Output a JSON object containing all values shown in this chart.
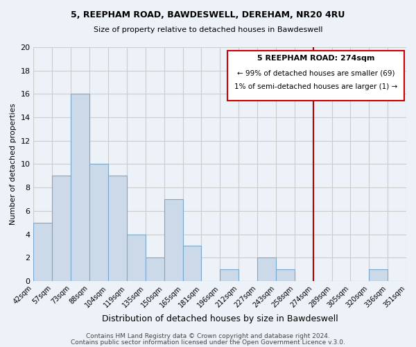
{
  "title1": "5, REEPHAM ROAD, BAWDESWELL, DEREHAM, NR20 4RU",
  "title2": "Size of property relative to detached houses in Bawdeswell",
  "xlabel": "Distribution of detached houses by size in Bawdeswell",
  "ylabel": "Number of detached properties",
  "bin_labels": [
    "42sqm",
    "57sqm",
    "73sqm",
    "88sqm",
    "104sqm",
    "119sqm",
    "135sqm",
    "150sqm",
    "165sqm",
    "181sqm",
    "196sqm",
    "212sqm",
    "227sqm",
    "243sqm",
    "258sqm",
    "274sqm",
    "289sqm",
    "305sqm",
    "320sqm",
    "336sqm",
    "351sqm"
  ],
  "bin_values": [
    5,
    9,
    16,
    10,
    9,
    4,
    2,
    7,
    3,
    0,
    1,
    0,
    2,
    1,
    0,
    0,
    0,
    0,
    1,
    0
  ],
  "bar_color": "#ccd9e8",
  "bar_edge_color": "#7aa8cc",
  "vline_x_index": 15,
  "vline_color": "#aa0000",
  "annotation_title": "5 REEPHAM ROAD: 274sqm",
  "annotation_line1": "← 99% of detached houses are smaller (69)",
  "annotation_line2": "1% of semi-detached houses are larger (1) →",
  "annotation_box_edge": "#cc0000",
  "ylim": [
    0,
    20
  ],
  "yticks": [
    0,
    2,
    4,
    6,
    8,
    10,
    12,
    14,
    16,
    18,
    20
  ],
  "footer1": "Contains HM Land Registry data © Crown copyright and database right 2024.",
  "footer2": "Contains public sector information licensed under the Open Government Licence v.3.0.",
  "bg_color": "#edf2f8",
  "grid_color": "#cccccc",
  "title_fontsize": 9,
  "subtitle_fontsize": 8,
  "xlabel_fontsize": 9,
  "ylabel_fontsize": 8,
  "tick_fontsize": 7,
  "footer_fontsize": 6.5
}
